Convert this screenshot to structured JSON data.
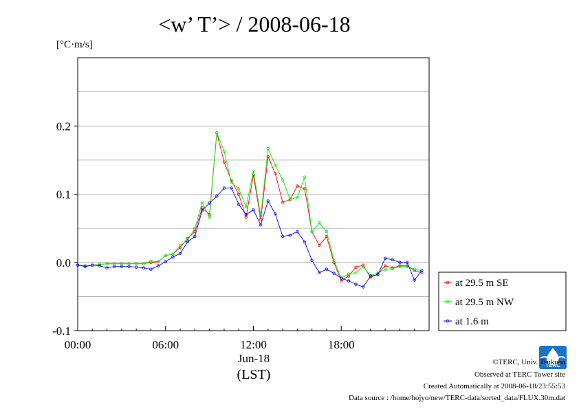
{
  "chart_data": {
    "type": "line",
    "title": "<w’ T’> / 2008-06-18",
    "ylabel": "[°C·m/s]",
    "xlabel_date": "Jun-18",
    "xlabel_zone": "(LST)",
    "ylim": [
      -0.1,
      0.3
    ],
    "xlim": [
      0,
      24
    ],
    "yticks": [
      {
        "value": 0.2,
        "label": "0.2"
      },
      {
        "value": 0.1,
        "label": "0.1"
      },
      {
        "value": 0.0,
        "label": "0.0"
      },
      {
        "value": -0.1,
        "label": "-0.1"
      }
    ],
    "xticks": [
      {
        "value": 0,
        "label": "00:00"
      },
      {
        "value": 6,
        "label": "06:00"
      },
      {
        "value": 12,
        "label": "12:00"
      },
      {
        "value": 18,
        "label": "18:00"
      }
    ],
    "grid": true,
    "legend_position": "right-bottom-outside",
    "x": [
      0.0,
      0.5,
      1.0,
      1.5,
      2.0,
      2.5,
      3.0,
      3.5,
      4.0,
      4.5,
      5.0,
      5.5,
      6.0,
      6.5,
      7.0,
      7.5,
      8.0,
      8.5,
      9.0,
      9.5,
      10.0,
      10.5,
      11.0,
      11.5,
      12.0,
      12.5,
      13.0,
      13.5,
      14.0,
      14.5,
      15.0,
      15.5,
      16.0,
      16.5,
      17.0,
      17.5,
      18.0,
      18.5,
      19.0,
      19.5,
      20.0,
      20.5,
      21.0,
      21.5,
      22.0,
      22.5,
      23.0,
      23.5
    ],
    "series": [
      {
        "name": "at 29.5 m SE",
        "color": "#ff0000",
        "values": [
          -0.004,
          -0.005,
          -0.004,
          -0.003,
          -0.002,
          -0.002,
          -0.002,
          -0.002,
          -0.002,
          -0.002,
          0.0,
          0.001,
          0.01,
          0.012,
          0.022,
          0.035,
          0.045,
          0.08,
          0.07,
          0.19,
          0.147,
          0.12,
          0.1,
          0.066,
          0.128,
          0.063,
          0.155,
          0.13,
          0.088,
          0.092,
          0.112,
          0.108,
          0.045,
          0.025,
          0.038,
          0.0,
          -0.027,
          -0.02,
          -0.007,
          -0.004,
          -0.022,
          -0.017,
          -0.005,
          -0.008,
          -0.005,
          -0.005,
          -0.012,
          -0.015
        ]
      },
      {
        "name": "at 29.5 m NW",
        "color": "#00ee00",
        "values": [
          -0.004,
          -0.005,
          -0.004,
          -0.003,
          -0.002,
          -0.002,
          -0.002,
          -0.002,
          -0.002,
          -0.002,
          0.002,
          0.001,
          0.01,
          0.012,
          0.025,
          0.032,
          0.05,
          0.088,
          0.066,
          0.19,
          0.163,
          0.117,
          0.108,
          0.081,
          0.134,
          0.068,
          0.167,
          0.142,
          0.121,
          0.093,
          0.095,
          0.125,
          0.045,
          0.058,
          0.045,
          0.003,
          -0.023,
          -0.017,
          -0.015,
          -0.006,
          -0.019,
          -0.016,
          -0.01,
          -0.009,
          -0.006,
          -0.006,
          -0.01,
          -0.012
        ]
      },
      {
        "name": "at 1.6 m",
        "color": "#0000ff",
        "values": [
          -0.004,
          -0.006,
          -0.004,
          -0.005,
          -0.008,
          -0.006,
          -0.006,
          -0.006,
          -0.007,
          -0.008,
          -0.01,
          -0.005,
          0.001,
          0.008,
          0.013,
          0.03,
          0.038,
          0.076,
          0.087,
          0.097,
          0.109,
          0.109,
          0.085,
          0.07,
          0.077,
          0.055,
          0.09,
          0.071,
          0.038,
          0.04,
          0.045,
          0.03,
          0.003,
          -0.015,
          -0.01,
          -0.016,
          -0.023,
          -0.027,
          -0.032,
          -0.036,
          -0.02,
          -0.018,
          0.006,
          0.004,
          0.0,
          0.0,
          -0.026,
          -0.012
        ]
      }
    ]
  },
  "footer": {
    "copyright": "©TERC, Univ. Tsukuba",
    "observed": "Observed at TERC Tower site",
    "created": "Created Automatically at 2008-06-18/23:55:53",
    "source": "Data source : /home/hojyo/new/TERC-data/sorted_data/FLUX.30m.dat"
  },
  "logo": {
    "text": "TERC",
    "color": "#1a73c8",
    "icon": "terc-logo-icon"
  }
}
